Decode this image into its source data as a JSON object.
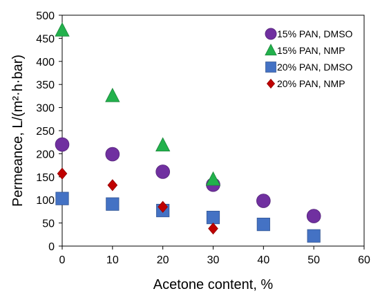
{
  "chart_data": {
    "type": "scatter",
    "xlabel": "Acetone content, %",
    "ylabel": "Permeance, L/(m²·h·bar)",
    "xlim": [
      0,
      60
    ],
    "ylim": [
      0,
      500
    ],
    "xticks": [
      0,
      10,
      20,
      30,
      40,
      50,
      60
    ],
    "yticks": [
      0,
      50,
      100,
      150,
      200,
      250,
      300,
      350,
      400,
      450,
      500
    ],
    "grid": false,
    "legend_position": "top-right",
    "series": [
      {
        "name": "15% PAN, DMSO",
        "marker": "circle",
        "color": "#7030a0",
        "x": [
          0,
          10,
          20,
          30,
          40,
          50
        ],
        "y": [
          220,
          199,
          161,
          133,
          98,
          65
        ]
      },
      {
        "name": "15% PAN, NMP",
        "marker": "triangle",
        "color": "#22b14c",
        "x": [
          0,
          10,
          20,
          30
        ],
        "y": [
          467,
          325,
          218,
          144
        ]
      },
      {
        "name": "20% PAN, DMSO",
        "marker": "square",
        "color": "#4472c4",
        "x": [
          0,
          10,
          20,
          30,
          40,
          50
        ],
        "y": [
          103,
          91,
          77,
          62,
          47,
          22
        ]
      },
      {
        "name": "20% PAN, NMP",
        "marker": "diamond",
        "color": "#c00000",
        "x": [
          0,
          10,
          20,
          30
        ],
        "y": [
          157,
          132,
          85,
          38
        ]
      }
    ]
  }
}
